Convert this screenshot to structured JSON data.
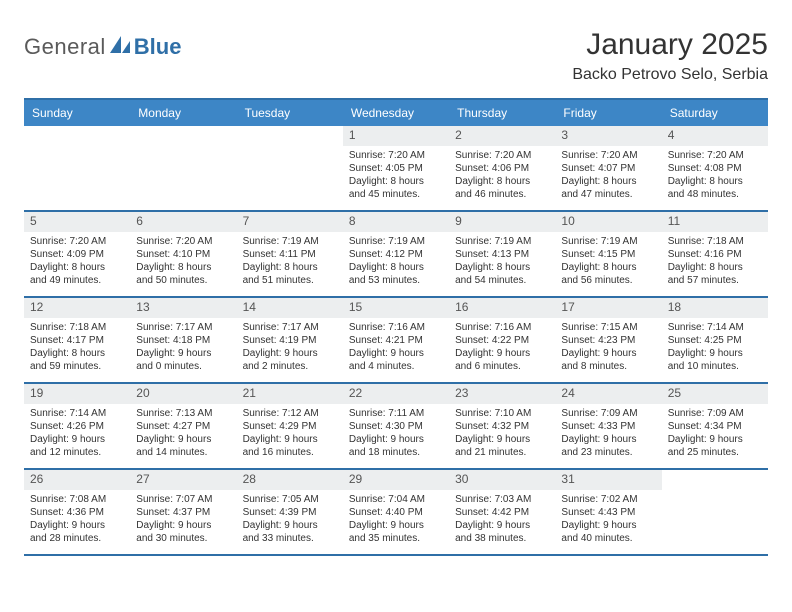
{
  "logo": {
    "text1": "General",
    "text2": "Blue",
    "mark_color": "#2f6fa7"
  },
  "title": "January 2025",
  "location": "Backo Petrovo Selo, Serbia",
  "colors": {
    "header_bar": "#3d86c6",
    "header_text": "#ffffff",
    "week_divider": "#2f6fa7",
    "daynum_bg": "#eceeef",
    "text": "#333333"
  },
  "days_of_week": [
    "Sunday",
    "Monday",
    "Tuesday",
    "Wednesday",
    "Thursday",
    "Friday",
    "Saturday"
  ],
  "weeks": [
    [
      null,
      null,
      null,
      {
        "n": "1",
        "sunrise": "7:20 AM",
        "sunset": "4:05 PM",
        "daylight": "8 hours and 45 minutes."
      },
      {
        "n": "2",
        "sunrise": "7:20 AM",
        "sunset": "4:06 PM",
        "daylight": "8 hours and 46 minutes."
      },
      {
        "n": "3",
        "sunrise": "7:20 AM",
        "sunset": "4:07 PM",
        "daylight": "8 hours and 47 minutes."
      },
      {
        "n": "4",
        "sunrise": "7:20 AM",
        "sunset": "4:08 PM",
        "daylight": "8 hours and 48 minutes."
      }
    ],
    [
      {
        "n": "5",
        "sunrise": "7:20 AM",
        "sunset": "4:09 PM",
        "daylight": "8 hours and 49 minutes."
      },
      {
        "n": "6",
        "sunrise": "7:20 AM",
        "sunset": "4:10 PM",
        "daylight": "8 hours and 50 minutes."
      },
      {
        "n": "7",
        "sunrise": "7:19 AM",
        "sunset": "4:11 PM",
        "daylight": "8 hours and 51 minutes."
      },
      {
        "n": "8",
        "sunrise": "7:19 AM",
        "sunset": "4:12 PM",
        "daylight": "8 hours and 53 minutes."
      },
      {
        "n": "9",
        "sunrise": "7:19 AM",
        "sunset": "4:13 PM",
        "daylight": "8 hours and 54 minutes."
      },
      {
        "n": "10",
        "sunrise": "7:19 AM",
        "sunset": "4:15 PM",
        "daylight": "8 hours and 56 minutes."
      },
      {
        "n": "11",
        "sunrise": "7:18 AM",
        "sunset": "4:16 PM",
        "daylight": "8 hours and 57 minutes."
      }
    ],
    [
      {
        "n": "12",
        "sunrise": "7:18 AM",
        "sunset": "4:17 PM",
        "daylight": "8 hours and 59 minutes."
      },
      {
        "n": "13",
        "sunrise": "7:17 AM",
        "sunset": "4:18 PM",
        "daylight": "9 hours and 0 minutes."
      },
      {
        "n": "14",
        "sunrise": "7:17 AM",
        "sunset": "4:19 PM",
        "daylight": "9 hours and 2 minutes."
      },
      {
        "n": "15",
        "sunrise": "7:16 AM",
        "sunset": "4:21 PM",
        "daylight": "9 hours and 4 minutes."
      },
      {
        "n": "16",
        "sunrise": "7:16 AM",
        "sunset": "4:22 PM",
        "daylight": "9 hours and 6 minutes."
      },
      {
        "n": "17",
        "sunrise": "7:15 AM",
        "sunset": "4:23 PM",
        "daylight": "9 hours and 8 minutes."
      },
      {
        "n": "18",
        "sunrise": "7:14 AM",
        "sunset": "4:25 PM",
        "daylight": "9 hours and 10 minutes."
      }
    ],
    [
      {
        "n": "19",
        "sunrise": "7:14 AM",
        "sunset": "4:26 PM",
        "daylight": "9 hours and 12 minutes."
      },
      {
        "n": "20",
        "sunrise": "7:13 AM",
        "sunset": "4:27 PM",
        "daylight": "9 hours and 14 minutes."
      },
      {
        "n": "21",
        "sunrise": "7:12 AM",
        "sunset": "4:29 PM",
        "daylight": "9 hours and 16 minutes."
      },
      {
        "n": "22",
        "sunrise": "7:11 AM",
        "sunset": "4:30 PM",
        "daylight": "9 hours and 18 minutes."
      },
      {
        "n": "23",
        "sunrise": "7:10 AM",
        "sunset": "4:32 PM",
        "daylight": "9 hours and 21 minutes."
      },
      {
        "n": "24",
        "sunrise": "7:09 AM",
        "sunset": "4:33 PM",
        "daylight": "9 hours and 23 minutes."
      },
      {
        "n": "25",
        "sunrise": "7:09 AM",
        "sunset": "4:34 PM",
        "daylight": "9 hours and 25 minutes."
      }
    ],
    [
      {
        "n": "26",
        "sunrise": "7:08 AM",
        "sunset": "4:36 PM",
        "daylight": "9 hours and 28 minutes."
      },
      {
        "n": "27",
        "sunrise": "7:07 AM",
        "sunset": "4:37 PM",
        "daylight": "9 hours and 30 minutes."
      },
      {
        "n": "28",
        "sunrise": "7:05 AM",
        "sunset": "4:39 PM",
        "daylight": "9 hours and 33 minutes."
      },
      {
        "n": "29",
        "sunrise": "7:04 AM",
        "sunset": "4:40 PM",
        "daylight": "9 hours and 35 minutes."
      },
      {
        "n": "30",
        "sunrise": "7:03 AM",
        "sunset": "4:42 PM",
        "daylight": "9 hours and 38 minutes."
      },
      {
        "n": "31",
        "sunrise": "7:02 AM",
        "sunset": "4:43 PM",
        "daylight": "9 hours and 40 minutes."
      },
      null
    ]
  ],
  "labels": {
    "sunrise": "Sunrise: ",
    "sunset": "Sunset: ",
    "daylight": "Daylight: "
  }
}
